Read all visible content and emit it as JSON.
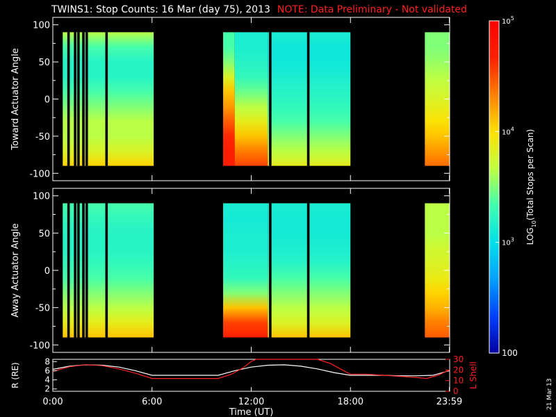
{
  "header": {
    "title": "TWINS1: Stop Counts: 16 Mar (day  75), 2013",
    "note": "NOTE: Data Preliminary - Not validated"
  },
  "stamp": "21 Mar 13",
  "colors": {
    "background": "#000000",
    "axis": "#ffffff",
    "note": "#ff2020",
    "r_line": "#ffffff",
    "lshell_line": "#ff2020",
    "colormap": [
      "#0000a0",
      "#0040ff",
      "#00a0ff",
      "#00e0e8",
      "#40ffb0",
      "#c0ff40",
      "#ffe000",
      "#ff8000",
      "#ff2000",
      "#ff0000"
    ]
  },
  "chart_data": [
    {
      "type": "heatmap",
      "name": "toward",
      "ylabel": "Toward Actuator Angle",
      "ylim": [
        -110,
        110
      ],
      "yticks": [
        "100",
        "50",
        "0",
        "-50",
        "-100"
      ],
      "ytick_values": [
        100,
        50,
        0,
        -50,
        -100
      ],
      "xlim_hours": [
        0,
        24
      ],
      "coverage_hours": [
        [
          0.6,
          6.1
        ],
        [
          10.3,
          18.0
        ],
        [
          22.5,
          23.98
        ]
      ],
      "gaps_hours": [
        0.95,
        1.35,
        1.55,
        1.85,
        2.05,
        3.25,
        13.15,
        15.45
      ],
      "intensity_profiles": [
        {
          "from": 0.6,
          "to": 6.1,
          "levels": [
            0.55,
            0.45,
            0.4,
            0.4,
            0.45,
            0.5,
            0.55,
            0.55,
            0.6,
            0.68
          ]
        },
        {
          "from": 10.3,
          "to": 11.0,
          "levels": [
            0.45,
            0.45,
            0.5,
            0.6,
            0.7,
            0.75,
            0.82,
            0.88,
            0.9,
            0.9
          ]
        },
        {
          "from": 11.0,
          "to": 13.0,
          "levels": [
            0.38,
            0.38,
            0.4,
            0.42,
            0.48,
            0.55,
            0.62,
            0.7,
            0.78,
            0.85
          ]
        },
        {
          "from": 13.0,
          "to": 18.0,
          "levels": [
            0.38,
            0.36,
            0.36,
            0.38,
            0.4,
            0.42,
            0.45,
            0.5,
            0.55,
            0.62
          ]
        },
        {
          "from": 22.5,
          "to": 23.98,
          "levels": [
            0.5,
            0.5,
            0.52,
            0.55,
            0.58,
            0.62,
            0.66,
            0.7,
            0.75,
            0.8
          ]
        }
      ]
    },
    {
      "type": "heatmap",
      "name": "away",
      "ylabel": "Away Actuator Angle",
      "ylim": [
        -110,
        110
      ],
      "yticks": [
        "100",
        "50",
        "0",
        "-50",
        "-100"
      ],
      "ytick_values": [
        100,
        50,
        0,
        -50,
        -100
      ],
      "xlim_hours": [
        0,
        24
      ],
      "coverage_hours": [
        [
          0.6,
          6.1
        ],
        [
          10.3,
          18.0
        ],
        [
          22.5,
          23.98
        ]
      ],
      "gaps_hours": [
        0.95,
        1.35,
        1.55,
        1.85,
        2.05,
        3.25,
        13.15,
        15.45
      ],
      "intensity_profiles": [
        {
          "from": 0.6,
          "to": 6.1,
          "levels": [
            0.45,
            0.42,
            0.4,
            0.4,
            0.42,
            0.45,
            0.5,
            0.55,
            0.62,
            0.7
          ]
        },
        {
          "from": 10.3,
          "to": 13.0,
          "levels": [
            0.38,
            0.37,
            0.38,
            0.38,
            0.4,
            0.42,
            0.5,
            0.7,
            0.85,
            0.9
          ]
        },
        {
          "from": 13.0,
          "to": 18.0,
          "levels": [
            0.38,
            0.37,
            0.37,
            0.38,
            0.4,
            0.45,
            0.5,
            0.55,
            0.6,
            0.7
          ]
        },
        {
          "from": 22.5,
          "to": 23.98,
          "levels": [
            0.55,
            0.55,
            0.55,
            0.58,
            0.6,
            0.63,
            0.68,
            0.72,
            0.78,
            0.82
          ]
        }
      ]
    },
    {
      "type": "line",
      "name": "orbit",
      "xlabel": "Time (UT)",
      "ylabel_left": "R (RE)",
      "ylabel_right": "L Shell",
      "x_ticks": [
        "0:00",
        "6:00",
        "12:00",
        "18:00",
        "23:59"
      ],
      "x_tick_values": [
        0,
        6,
        12,
        18,
        23.98
      ],
      "ylim_left": [
        1.5,
        8.5
      ],
      "yticks_left": [
        "8",
        "6",
        "4",
        "2"
      ],
      "ytick_values_left": [
        8,
        6,
        4,
        2
      ],
      "ylim_right": [
        0,
        30
      ],
      "yticks_right": [
        "30",
        "20",
        "10",
        "0"
      ],
      "ytick_values_right": [
        30,
        20,
        10,
        0
      ],
      "series": [
        {
          "axis": "left",
          "color": "#ffffff",
          "x": [
            0,
            1,
            2,
            3,
            4,
            5,
            6,
            7,
            8,
            9,
            10,
            11,
            12,
            13,
            14,
            15,
            16,
            17,
            18,
            19,
            20,
            21,
            22,
            23,
            23.98
          ],
          "y": [
            6.3,
            7.0,
            7.3,
            7.2,
            6.8,
            6.0,
            5.0,
            5.0,
            5.0,
            5.0,
            5.0,
            6.0,
            6.8,
            7.2,
            7.3,
            7.0,
            6.4,
            5.6,
            5.0,
            5.0,
            5.0,
            4.9,
            4.9,
            5.0,
            6.0
          ]
        },
        {
          "axis": "right",
          "color": "#ff2020",
          "x": [
            0,
            1,
            2,
            3,
            4,
            5,
            6,
            7,
            8,
            9,
            10,
            10.8,
            11.5,
            12.0,
            12.3,
            16.0,
            16.8,
            17.5,
            18.0,
            19,
            20,
            21,
            22,
            22.6,
            23.3,
            23.98
          ],
          "y": [
            18.5,
            23.0,
            25.0,
            24.0,
            21.0,
            17.0,
            12.0,
            12.0,
            12.0,
            12.0,
            12.0,
            16.0,
            22.0,
            28.0,
            30,
            30,
            26.0,
            20.0,
            16.0,
            16.0,
            15.0,
            14.0,
            13.0,
            12.0,
            15.0,
            20.0
          ]
        }
      ]
    },
    {
      "type": "heatmap",
      "name": "colorbar",
      "label": "LOG10(Total Stops per Scan)",
      "label_base": "LOG",
      "label_sub": "10",
      "label_rest": "(Total Stops per Scan)",
      "scale": "log",
      "range": [
        100,
        100000
      ],
      "tick_values": [
        100,
        1000,
        10000,
        100000
      ],
      "tick_labels": [
        "100",
        "10^3",
        "10^4",
        "10^5"
      ],
      "tick_base": "10",
      "tick_exps": [
        "",
        "3",
        "4",
        "5"
      ]
    }
  ]
}
